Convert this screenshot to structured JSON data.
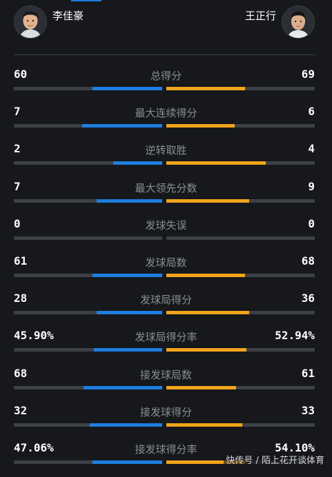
{
  "players": {
    "left": {
      "name": "李佳豪"
    },
    "right": {
      "name": "王正行"
    }
  },
  "colors": {
    "left_bar": "#1e7fe0",
    "right_bar": "#f2a51a",
    "track": "#3d4046"
  },
  "stats": [
    {
      "label": "总得分",
      "left": "60",
      "right": "69",
      "left_fill": 0.47,
      "right_fill": 0.53
    },
    {
      "label": "最大连续得分",
      "left": "7",
      "right": "6",
      "left_fill": 0.54,
      "right_fill": 0.46
    },
    {
      "label": "逆转取胜",
      "left": "2",
      "right": "4",
      "left_fill": 0.33,
      "right_fill": 0.67
    },
    {
      "label": "最大领先分数",
      "left": "7",
      "right": "9",
      "left_fill": 0.44,
      "right_fill": 0.56
    },
    {
      "label": "发球失误",
      "left": "0",
      "right": "0",
      "left_fill": 0,
      "right_fill": 0
    },
    {
      "label": "发球局数",
      "left": "61",
      "right": "68",
      "left_fill": 0.47,
      "right_fill": 0.53
    },
    {
      "label": "发球局得分",
      "left": "28",
      "right": "36",
      "left_fill": 0.44,
      "right_fill": 0.56
    },
    {
      "label": "发球局得分率",
      "left": "45.90%",
      "right": "52.94%",
      "left_fill": 0.46,
      "right_fill": 0.54
    },
    {
      "label": "接发球局数",
      "left": "68",
      "right": "61",
      "left_fill": 0.53,
      "right_fill": 0.47
    },
    {
      "label": "接发球得分",
      "left": "32",
      "right": "33",
      "left_fill": 0.49,
      "right_fill": 0.51
    },
    {
      "label": "接发球得分率",
      "left": "47.06%",
      "right": "54.10%",
      "left_fill": 0.47,
      "right_fill": 0.53
    }
  ],
  "watermark": "快传号 / 陌上花开谈体育"
}
